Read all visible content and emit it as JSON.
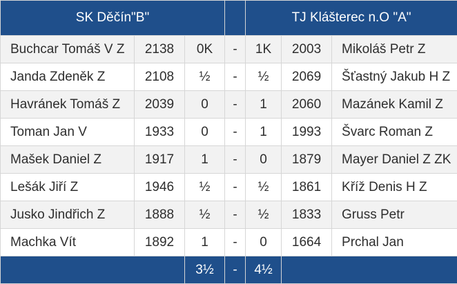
{
  "header": {
    "home_team": "SK Děčín\"B\"",
    "away_team": "TJ Klášterec n.O \"A\""
  },
  "boards": [
    {
      "home_player": "Buchcar Tomáš V Z",
      "home_rating": "2138",
      "home_result": "0K",
      "separator": "-",
      "away_result": "1K",
      "away_rating": "2003",
      "away_player": "Mikoláš Petr Z"
    },
    {
      "home_player": "Janda Zdeněk Z",
      "home_rating": "2108",
      "home_result": "½",
      "separator": "-",
      "away_result": "½",
      "away_rating": "2069",
      "away_player": "Šťastný Jakub H Z"
    },
    {
      "home_player": "Havránek Tomáš Z",
      "home_rating": "2039",
      "home_result": "0",
      "separator": "-",
      "away_result": "1",
      "away_rating": "2060",
      "away_player": "Mazánek Kamil Z"
    },
    {
      "home_player": "Toman Jan V",
      "home_rating": "1933",
      "home_result": "0",
      "separator": "-",
      "away_result": "1",
      "away_rating": "1993",
      "away_player": "Švarc Roman Z"
    },
    {
      "home_player": "Mašek Daniel Z",
      "home_rating": "1917",
      "home_result": "1",
      "separator": "-",
      "away_result": "0",
      "away_rating": "1879",
      "away_player": "Mayer Daniel Z ZK"
    },
    {
      "home_player": "Lešák Jiří Z",
      "home_rating": "1946",
      "home_result": "½",
      "separator": "-",
      "away_result": "½",
      "away_rating": "1861",
      "away_player": "Kříž Denis H Z"
    },
    {
      "home_player": "Jusko Jindřich Z",
      "home_rating": "1888",
      "home_result": "½",
      "separator": "-",
      "away_result": "½",
      "away_rating": "1833",
      "away_player": "Gruss Petr"
    },
    {
      "home_player": "Machka Vít",
      "home_rating": "1892",
      "home_result": "1",
      "separator": "-",
      "away_result": "0",
      "away_rating": "1664",
      "away_player": "Prchal Jan"
    }
  ],
  "totals": {
    "home_score": "3½",
    "separator": "-",
    "away_score": "4½"
  },
  "colors": {
    "header_bg": "#1f4f8b",
    "row_alt_bg": "#f2f2f2",
    "border": "#d6d6d6"
  }
}
